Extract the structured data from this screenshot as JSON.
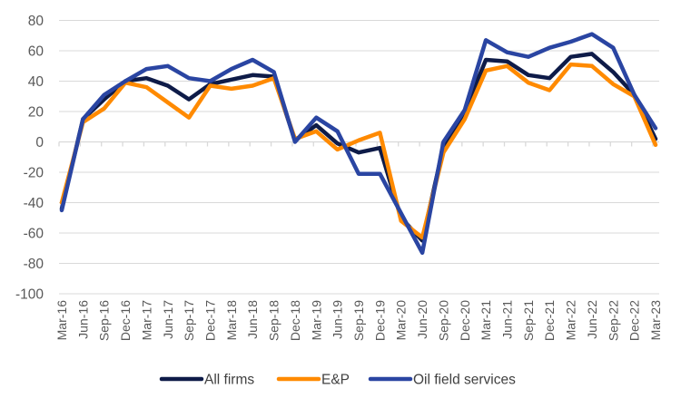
{
  "chart_data": {
    "type": "line",
    "title": "",
    "xlabel": "",
    "ylabel": "",
    "ylim": [
      -100,
      80
    ],
    "yticks": [
      80,
      60,
      40,
      20,
      0,
      -20,
      -40,
      -60,
      -80,
      -100
    ],
    "grid": true,
    "legend_position": "bottom",
    "categories": [
      "Mar-16",
      "Jun-16",
      "Sep-16",
      "Dec-16",
      "Mar-17",
      "Jun-17",
      "Sep-17",
      "Dec-17",
      "Mar-18",
      "Jun-18",
      "Sep-18",
      "Dec-18",
      "Mar-19",
      "Jun-19",
      "Sep-19",
      "Dec-19",
      "Mar-20",
      "Jun-20",
      "Sep-20",
      "Dec-20",
      "Mar-21",
      "Jun-21",
      "Sep-21",
      "Dec-21",
      "Mar-22",
      "Jun-22",
      "Sep-22",
      "Dec-22",
      "Mar-23"
    ],
    "series": [
      {
        "name": "All firms",
        "color": "#0e1b48",
        "values": [
          -44,
          15,
          28,
          40,
          42,
          37,
          28,
          38,
          41,
          44,
          43,
          1,
          11,
          -1,
          -7,
          -4,
          -50,
          -65,
          -3,
          20,
          54,
          53,
          44,
          42,
          56,
          58,
          46,
          31,
          2
        ]
      },
      {
        "name": "E&P",
        "color": "#ff8a00",
        "values": [
          -40,
          13,
          22,
          39,
          36,
          26,
          16,
          37,
          35,
          37,
          42,
          2,
          7,
          -5,
          1,
          6,
          -52,
          -63,
          -7,
          15,
          47,
          50,
          39,
          34,
          51,
          50,
          38,
          30,
          -2
        ]
      },
      {
        "name": "Oil field services",
        "color": "#2a45a2",
        "values": [
          -45,
          15,
          31,
          40,
          48,
          50,
          42,
          40,
          48,
          54,
          46,
          0,
          16,
          7,
          -21,
          -21,
          -47,
          -73,
          0,
          21,
          67,
          59,
          56,
          62,
          66,
          71,
          62,
          31,
          9
        ]
      }
    ]
  }
}
